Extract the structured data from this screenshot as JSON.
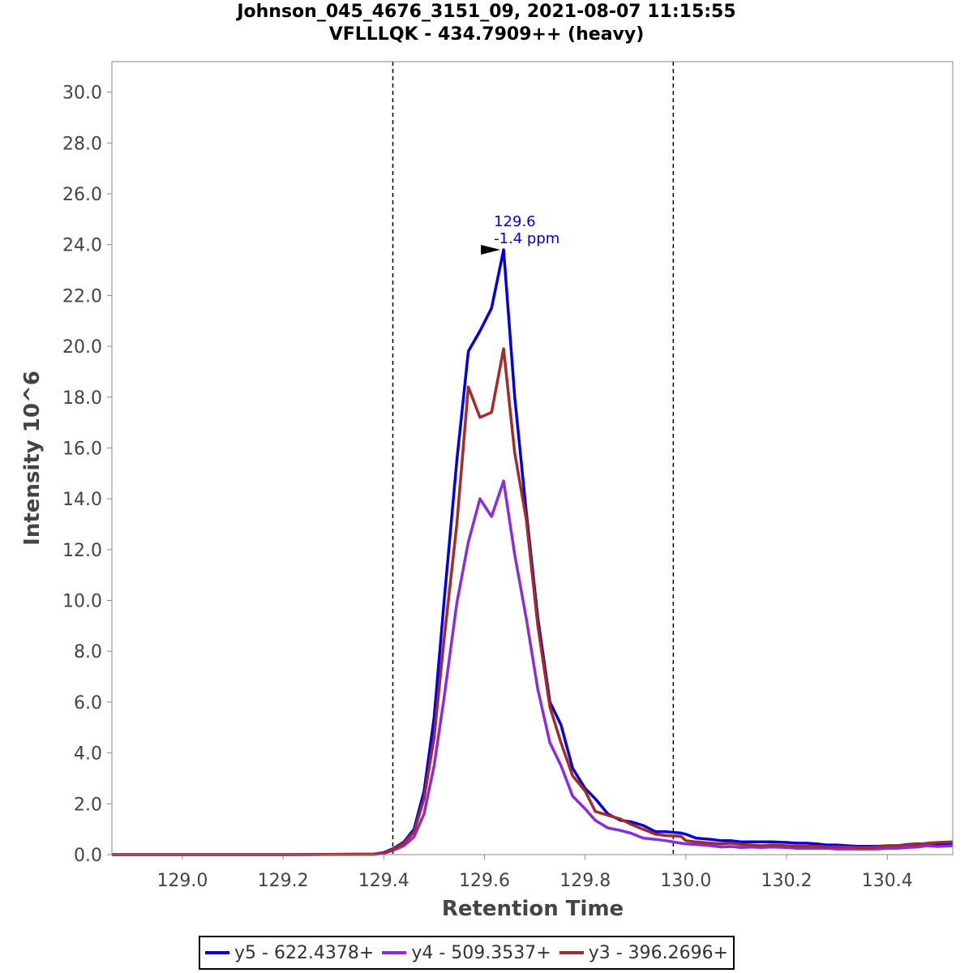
{
  "chart_data": {
    "type": "line",
    "title_line1": "Johnson_045_4676_3151_09, 2021-08-07 11:15:55",
    "title_line2": "VFLLLQK - 434.7909++ (heavy)",
    "xlabel": "Retention Time",
    "ylabel": "Intensity 10^6",
    "xlim": [
      128.86,
      130.53
    ],
    "ylim": [
      0,
      31.2
    ],
    "xticks": [
      129.0,
      129.2,
      129.4,
      129.6,
      129.8,
      130.0,
      130.2,
      130.4
    ],
    "xtick_labels": [
      "129.0",
      "129.2",
      "129.4",
      "129.6",
      "129.8",
      "130.0",
      "130.2",
      "130.4"
    ],
    "yticks": [
      0,
      2,
      4,
      6,
      8,
      10,
      12,
      14,
      16,
      18,
      20,
      22,
      24,
      26,
      28,
      30
    ],
    "ytick_labels": [
      "0.0",
      "2.0",
      "4.0",
      "6.0",
      "8.0",
      "10.0",
      "12.0",
      "14.0",
      "16.0",
      "18.0",
      "20.0",
      "22.0",
      "24.0",
      "26.0",
      "28.0",
      "30.0"
    ],
    "boundaries": [
      129.418,
      129.975
    ],
    "annotation": {
      "x": 129.638,
      "y": 23.8,
      "line1": "129.6",
      "line2": "-1.4 ppm",
      "color": "#0000dd"
    },
    "series": [
      {
        "name": "y5 - 622.4378+",
        "color": "#0000e6",
        "x": [
          128.86,
          129.0,
          129.2,
          129.38,
          129.4,
          129.42,
          129.44,
          129.46,
          129.48,
          129.5,
          129.52,
          129.545,
          129.568,
          129.591,
          129.614,
          129.638,
          129.66,
          129.683,
          129.706,
          129.73,
          129.752,
          129.775,
          129.8,
          129.82,
          129.845,
          129.87,
          129.89,
          129.915,
          129.94,
          129.96,
          129.99,
          130.0,
          130.02,
          130.05,
          130.07,
          130.09,
          130.11,
          130.13,
          130.15,
          130.17,
          130.2,
          130.22,
          130.24,
          130.26,
          130.28,
          130.3,
          130.32,
          130.34,
          130.36,
          130.38,
          130.4,
          130.42,
          130.44,
          130.46,
          130.48,
          130.5,
          130.53
        ],
        "y": [
          0,
          0,
          0,
          0.02,
          0.08,
          0.25,
          0.5,
          1.0,
          2.5,
          5.4,
          10.0,
          15.5,
          19.8,
          20.6,
          21.5,
          23.8,
          18.0,
          13.5,
          9.3,
          6.0,
          5.1,
          3.4,
          2.6,
          2.2,
          1.6,
          1.35,
          1.3,
          1.15,
          0.9,
          0.9,
          0.85,
          0.8,
          0.65,
          0.6,
          0.55,
          0.55,
          0.5,
          0.5,
          0.5,
          0.5,
          0.48,
          0.45,
          0.45,
          0.42,
          0.38,
          0.38,
          0.35,
          0.33,
          0.33,
          0.33,
          0.35,
          0.35,
          0.4,
          0.42,
          0.42,
          0.4,
          0.4
        ]
      },
      {
        "name": "y4 - 509.3537+",
        "color": "#8a2be2",
        "x": [
          128.86,
          129.0,
          129.2,
          129.38,
          129.4,
          129.42,
          129.44,
          129.46,
          129.48,
          129.5,
          129.52,
          129.545,
          129.568,
          129.591,
          129.614,
          129.638,
          129.66,
          129.683,
          129.706,
          129.73,
          129.752,
          129.775,
          129.8,
          129.82,
          129.845,
          129.87,
          129.89,
          129.915,
          129.94,
          129.96,
          129.99,
          130.0,
          130.02,
          130.05,
          130.07,
          130.09,
          130.11,
          130.13,
          130.15,
          130.17,
          130.2,
          130.22,
          130.24,
          130.26,
          130.28,
          130.3,
          130.32,
          130.34,
          130.36,
          130.38,
          130.4,
          130.42,
          130.44,
          130.46,
          130.48,
          130.5,
          130.53
        ],
        "y": [
          0,
          0,
          0,
          0.01,
          0.05,
          0.18,
          0.35,
          0.7,
          1.6,
          3.5,
          6.2,
          9.9,
          12.3,
          14.0,
          13.3,
          14.7,
          11.8,
          9.3,
          6.5,
          4.4,
          3.5,
          2.3,
          1.8,
          1.35,
          1.05,
          0.95,
          0.85,
          0.65,
          0.6,
          0.55,
          0.45,
          0.42,
          0.4,
          0.35,
          0.3,
          0.32,
          0.28,
          0.3,
          0.28,
          0.3,
          0.28,
          0.25,
          0.25,
          0.25,
          0.25,
          0.22,
          0.22,
          0.22,
          0.22,
          0.22,
          0.25,
          0.25,
          0.28,
          0.3,
          0.35,
          0.32,
          0.35
        ]
      },
      {
        "name": "y3 - 396.2696+",
        "color": "#a52a2a",
        "x": [
          128.86,
          129.0,
          129.2,
          129.38,
          129.4,
          129.42,
          129.44,
          129.46,
          129.48,
          129.5,
          129.52,
          129.545,
          129.568,
          129.591,
          129.614,
          129.638,
          129.66,
          129.683,
          129.706,
          129.73,
          129.752,
          129.775,
          129.8,
          129.82,
          129.845,
          129.87,
          129.89,
          129.915,
          129.94,
          129.96,
          129.99,
          130.0,
          130.02,
          130.05,
          130.07,
          130.09,
          130.11,
          130.13,
          130.15,
          130.17,
          130.2,
          130.22,
          130.24,
          130.26,
          130.28,
          130.3,
          130.32,
          130.34,
          130.36,
          130.38,
          130.4,
          130.42,
          130.44,
          130.46,
          130.48,
          130.5,
          130.53
        ],
        "y": [
          0,
          0,
          0,
          0.02,
          0.06,
          0.22,
          0.45,
          0.9,
          2.2,
          4.6,
          8.5,
          13.0,
          18.4,
          17.2,
          17.4,
          19.9,
          15.8,
          13.2,
          9.0,
          5.8,
          4.4,
          3.1,
          2.5,
          1.7,
          1.55,
          1.4,
          1.2,
          1.0,
          0.8,
          0.75,
          0.72,
          0.55,
          0.5,
          0.45,
          0.42,
          0.45,
          0.4,
          0.38,
          0.35,
          0.38,
          0.35,
          0.33,
          0.33,
          0.33,
          0.3,
          0.3,
          0.3,
          0.28,
          0.28,
          0.3,
          0.35,
          0.35,
          0.38,
          0.4,
          0.45,
          0.48,
          0.5
        ]
      }
    ]
  }
}
